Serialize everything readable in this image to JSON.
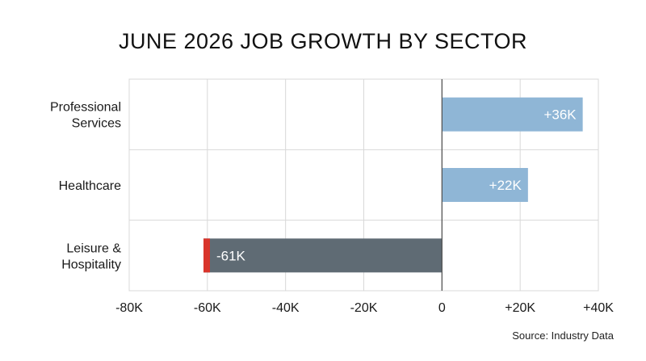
{
  "chart_data": {
    "type": "bar",
    "orientation": "horizontal",
    "title": "JUNE 2026 JOB GROWTH BY SECTOR",
    "categories": [
      [
        "Professional",
        "Services"
      ],
      [
        "Healthcare"
      ],
      [
        "Leisure &",
        "Hospitality"
      ]
    ],
    "values": [
      36,
      22,
      -61
    ],
    "data_labels": [
      "+36K",
      "+22K",
      "-61K"
    ],
    "x_ticks": [
      -80,
      -60,
      -40,
      -20,
      0,
      20,
      40
    ],
    "x_tick_labels": [
      "-80K",
      "-60K",
      "-40K",
      "-20K",
      "0",
      "+20K",
      "+40K"
    ],
    "xlim": [
      -80,
      40
    ],
    "grid": true,
    "colors": {
      "positive": "#8fb6d6",
      "negative": "#5f6b74",
      "negative_accent": "#d9342b",
      "grid": "#d8d8d8",
      "zero_line": "#555555"
    },
    "source": "Source: Industry Data"
  }
}
